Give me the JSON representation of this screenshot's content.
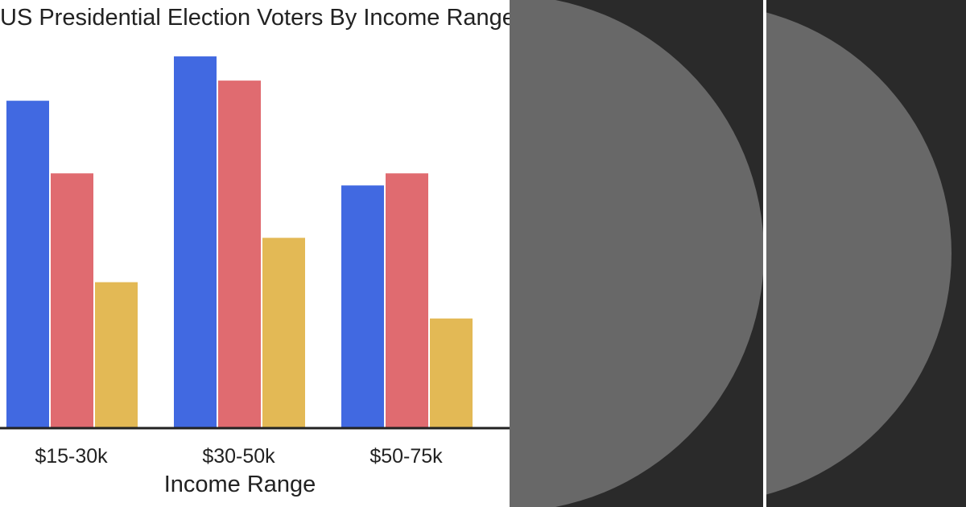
{
  "chart_data": {
    "type": "bar",
    "title": "US Presidential Election Voters By Income Range",
    "xlabel": "Income Range",
    "ylabel": "",
    "categories": [
      "$15-30k",
      "$30-50k",
      "$50-75k"
    ],
    "series": [
      {
        "values": [
          81,
          92,
          60
        ],
        "color": "#4169e1"
      },
      {
        "values": [
          63,
          86,
          63
        ],
        "color": "#e06b70"
      },
      {
        "values": [
          36,
          47,
          27
        ],
        "color": "#e3b955"
      }
    ],
    "ylim": [
      0,
      100
    ],
    "grid": false,
    "legend": "none"
  },
  "panels": {
    "background": "#2a2a2a",
    "circle_color": "#686868",
    "divider_color": "#ffffff"
  }
}
